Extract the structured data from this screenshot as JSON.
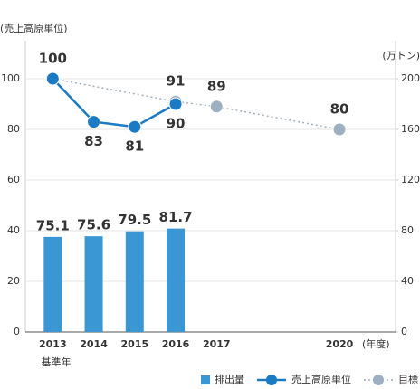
{
  "chart_data": {
    "type": "combo",
    "y_label": "(売上高原単位)",
    "y2_label": "(万トン)",
    "x_label": "(年度)",
    "annotation": "基準年",
    "xlim": [
      2012.33,
      2021.37
    ],
    "xticks": [
      2013,
      2014,
      2015,
      2016,
      2017,
      2020
    ],
    "ylim": [
      0,
      115
    ],
    "yticks": [
      0,
      20,
      40,
      60,
      80,
      100
    ],
    "y2lim": [
      0,
      230
    ],
    "y2ticks": [
      0,
      40,
      80,
      120,
      160,
      200
    ],
    "grid": true,
    "series": [
      {
        "name": "排出量",
        "type": "bar",
        "axis": "y2",
        "color": "#3a97d4",
        "x": [
          2013,
          2014,
          2015,
          2016
        ],
        "values": [
          75.1,
          75.6,
          79.5,
          81.7
        ]
      },
      {
        "name": "売上高原単位",
        "type": "line",
        "color": "#1a7ac4",
        "x": [
          2013,
          2014,
          2015,
          2016
        ],
        "values": [
          100,
          83,
          81,
          90
        ]
      },
      {
        "name": "目標",
        "type": "line",
        "dashed": true,
        "color": "#9db0c2",
        "x": [
          2013,
          2016,
          2017,
          2020
        ],
        "values": [
          100,
          91,
          89,
          80
        ]
      }
    ]
  }
}
